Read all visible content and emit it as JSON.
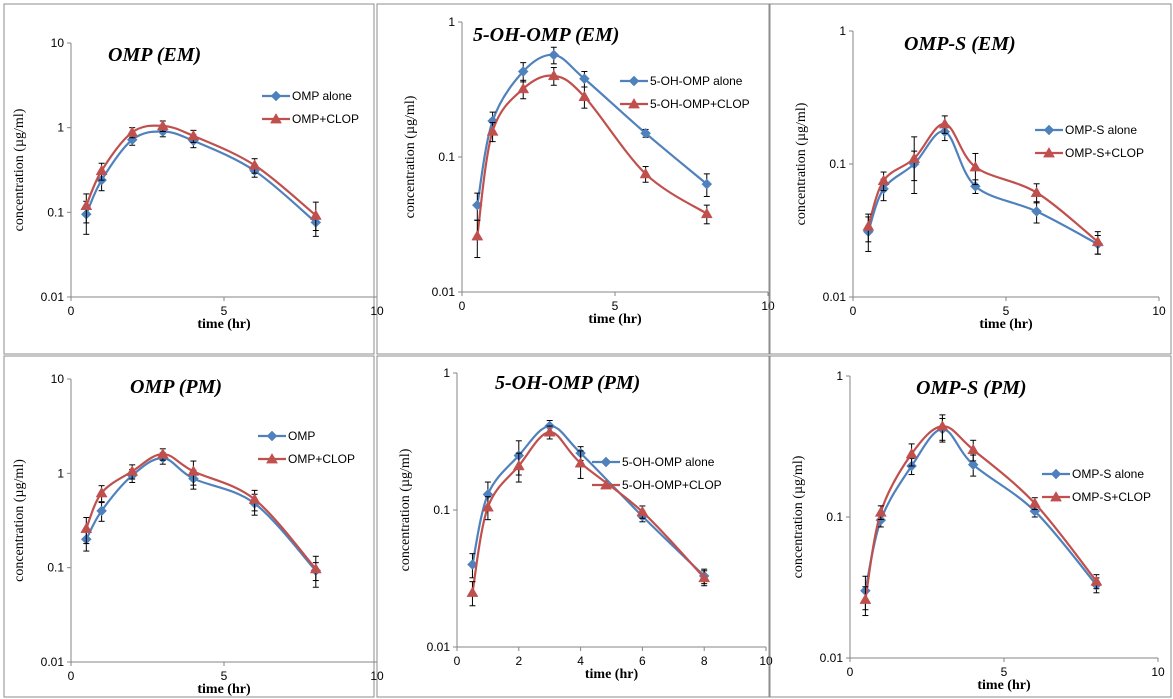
{
  "series_colors": {
    "alone": "#4F81BD",
    "clop": "#C0504D"
  },
  "series_markers": {
    "alone": "diamond",
    "clop": "triangle"
  },
  "chart_data": [
    {
      "type": "line",
      "title": "OMP (EM)",
      "xlabel": "time (hr)",
      "ylabel": "concentration (µg/ml)",
      "xlim": [
        0,
        10
      ],
      "ylim": [
        0.01,
        10
      ],
      "yscale": "log",
      "xticks": [
        "0",
        "5",
        "10"
      ],
      "yticks": [
        "0.01",
        "0.1",
        "1",
        "10"
      ],
      "legend_position": "right",
      "series": [
        {
          "name": "OMP alone",
          "x": [
            0.5,
            1,
            2,
            3,
            4,
            6,
            8
          ],
          "y": [
            0.095,
            0.24,
            0.72,
            0.9,
            0.7,
            0.31,
            0.076
          ],
          "err": [
            0.04,
            0.06,
            0.1,
            0.12,
            0.12,
            0.05,
            0.015
          ]
        },
        {
          "name": "OMP+CLOP",
          "x": [
            0.5,
            1,
            2,
            3,
            4,
            6,
            8
          ],
          "y": [
            0.12,
            0.31,
            0.88,
            1.05,
            0.8,
            0.36,
            0.092
          ],
          "err": [
            0.045,
            0.07,
            0.12,
            0.15,
            0.13,
            0.07,
            0.04
          ]
        }
      ]
    },
    {
      "type": "line",
      "title": "5-OH-OMP (EM)",
      "xlabel": "time (hr)",
      "ylabel": "concentration (µg/ml)",
      "xlim": [
        0,
        10
      ],
      "ylim": [
        0.01,
        1
      ],
      "yscale": "log",
      "xticks": [
        "0",
        "5",
        "10"
      ],
      "yticks": [
        "0.01",
        "0.1",
        "1"
      ],
      "legend_position": "right",
      "series": [
        {
          "name": "5-OH-OMP alone",
          "x": [
            0.5,
            1,
            2,
            3,
            4,
            6,
            8
          ],
          "y": [
            0.044,
            0.185,
            0.43,
            0.57,
            0.38,
            0.15,
            0.063
          ],
          "err": [
            0.01,
            0.03,
            0.07,
            0.08,
            0.05,
            0.01,
            0.012
          ]
        },
        {
          "name": "5-OH-OMP+CLOP",
          "x": [
            0.5,
            1,
            2,
            3,
            4,
            6,
            8
          ],
          "y": [
            0.026,
            0.155,
            0.32,
            0.4,
            0.28,
            0.075,
            0.038
          ],
          "err": [
            0.008,
            0.025,
            0.05,
            0.06,
            0.05,
            0.01,
            0.006
          ]
        }
      ]
    },
    {
      "type": "line",
      "title": "OMP-S (EM)",
      "xlabel": "time (hr)",
      "ylabel": "concentration (µg/ml)",
      "xlim": [
        0,
        10
      ],
      "ylim": [
        0.01,
        1
      ],
      "yscale": "log",
      "xticks": [
        "0",
        "5",
        "10"
      ],
      "yticks": [
        "0.01",
        "0.1",
        "1"
      ],
      "legend_position": "right",
      "series": [
        {
          "name": "OMP-S alone",
          "x": [
            0.5,
            1,
            2,
            3,
            4,
            6,
            8
          ],
          "y": [
            0.031,
            0.065,
            0.1,
            0.175,
            0.068,
            0.044,
            0.025
          ],
          "err": [
            0.009,
            0.012,
            0.025,
            0.025,
            0.008,
            0.008,
            0.004
          ]
        },
        {
          "name": "OMP-S+CLOP",
          "x": [
            0.5,
            1,
            2,
            3,
            4,
            6,
            8
          ],
          "y": [
            0.034,
            0.075,
            0.11,
            0.2,
            0.095,
            0.061,
            0.026
          ],
          "err": [
            0.008,
            0.012,
            0.05,
            0.03,
            0.025,
            0.01,
            0.005
          ]
        }
      ]
    },
    {
      "type": "line",
      "title": "OMP (PM)",
      "xlabel": "time (hr)",
      "ylabel": "concentration (µg/ml)",
      "xlim": [
        0,
        10
      ],
      "ylim": [
        0.01,
        10
      ],
      "yscale": "log",
      "xticks": [
        "0",
        "5",
        "10"
      ],
      "yticks": [
        "0.01",
        "0.1",
        "1",
        "10"
      ],
      "legend_position": "right",
      "series": [
        {
          "name": "OMP",
          "x": [
            0.5,
            1,
            2,
            3,
            4,
            6,
            8
          ],
          "y": [
            0.2,
            0.4,
            0.95,
            1.45,
            0.88,
            0.48,
            0.093
          ],
          "err": [
            0.05,
            0.09,
            0.15,
            0.2,
            0.2,
            0.12,
            0.02
          ]
        },
        {
          "name": "OMP+CLOP",
          "x": [
            0.5,
            1,
            2,
            3,
            4,
            6,
            8
          ],
          "y": [
            0.26,
            0.62,
            1.05,
            1.6,
            1.05,
            0.53,
            0.097
          ],
          "err": [
            0.08,
            0.12,
            0.18,
            0.22,
            0.3,
            0.13,
            0.035
          ]
        }
      ]
    },
    {
      "type": "line",
      "title": "5-OH-OMP (PM)",
      "xlabel": "time (hr)",
      "ylabel": "concentration (µg/ml)",
      "xlim": [
        0,
        10
      ],
      "ylim": [
        0.01,
        1
      ],
      "yscale": "log",
      "xticks": [
        "0",
        "2",
        "4",
        "6",
        "8",
        "10"
      ],
      "yticks": [
        "0.01",
        "0.1",
        "1"
      ],
      "legend_position": "right",
      "series": [
        {
          "name": "5-OH-OMP alone",
          "x": [
            0.5,
            1,
            2,
            3,
            4,
            6,
            8
          ],
          "y": [
            0.04,
            0.13,
            0.25,
            0.41,
            0.26,
            0.09,
            0.033
          ],
          "err": [
            0.008,
            0.03,
            0.07,
            0.04,
            0.03,
            0.008,
            0.004
          ]
        },
        {
          "name": "5-OH-OMP+CLOP",
          "x": [
            0.5,
            1,
            2,
            3,
            4,
            6,
            8
          ],
          "y": [
            0.025,
            0.105,
            0.21,
            0.37,
            0.22,
            0.097,
            0.032
          ],
          "err": [
            0.005,
            0.02,
            0.05,
            0.04,
            0.05,
            0.01,
            0.004
          ]
        }
      ]
    },
    {
      "type": "line",
      "title": "OMP-S (PM)",
      "xlabel": "time (hr)",
      "ylabel": "concentration (µg/ml)",
      "xlim": [
        0,
        10
      ],
      "ylim": [
        0.01,
        1
      ],
      "yscale": "log",
      "xticks": [
        "0",
        "5",
        "10"
      ],
      "yticks": [
        "0.01",
        "0.1",
        "1"
      ],
      "legend_position": "right",
      "series": [
        {
          "name": "OMP-S alone",
          "x": [
            0.5,
            1,
            2,
            3,
            4,
            6,
            8
          ],
          "y": [
            0.03,
            0.095,
            0.23,
            0.42,
            0.235,
            0.11,
            0.033
          ],
          "err": [
            0.008,
            0.01,
            0.03,
            0.08,
            0.04,
            0.01,
            0.004
          ]
        },
        {
          "name": "OMP-S+CLOP",
          "x": [
            0.5,
            1,
            2,
            3,
            4,
            6,
            8
          ],
          "y": [
            0.026,
            0.108,
            0.28,
            0.44,
            0.3,
            0.125,
            0.035
          ],
          "err": [
            0.006,
            0.012,
            0.05,
            0.09,
            0.05,
            0.012,
            0.004
          ]
        }
      ]
    }
  ]
}
